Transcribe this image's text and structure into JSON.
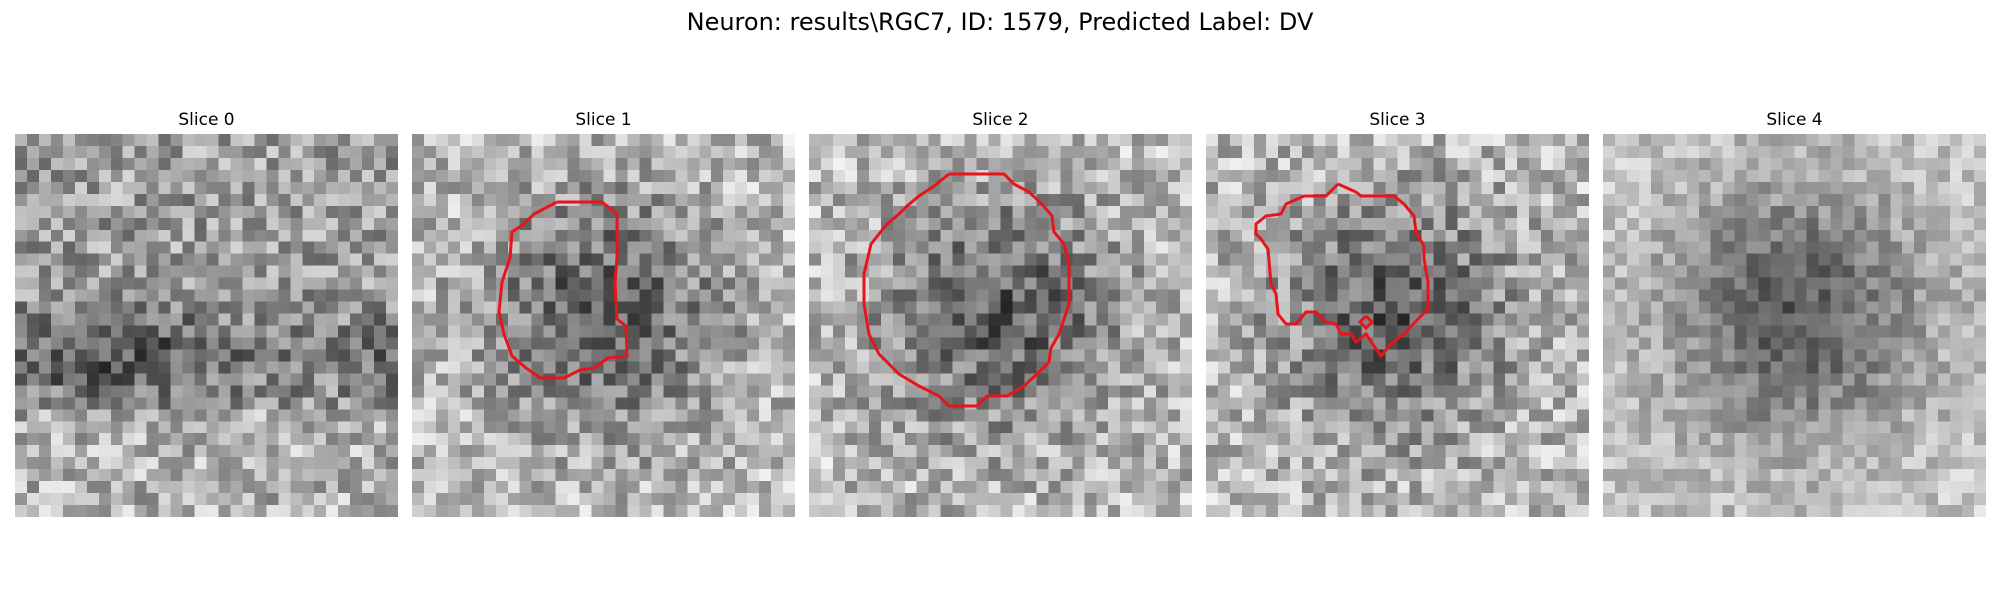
{
  "figure": {
    "title": "Neuron: results\\RGC7, ID: 1579, Predicted Label: DV",
    "contour_color": "#e8141c"
  },
  "panels": [
    {
      "title": "Slice 0",
      "has_contour": false
    },
    {
      "title": "Slice 1",
      "has_contour": true
    },
    {
      "title": "Slice 2",
      "has_contour": true
    },
    {
      "title": "Slice 3",
      "has_contour": true
    },
    {
      "title": "Slice 4",
      "has_contour": false
    }
  ]
}
